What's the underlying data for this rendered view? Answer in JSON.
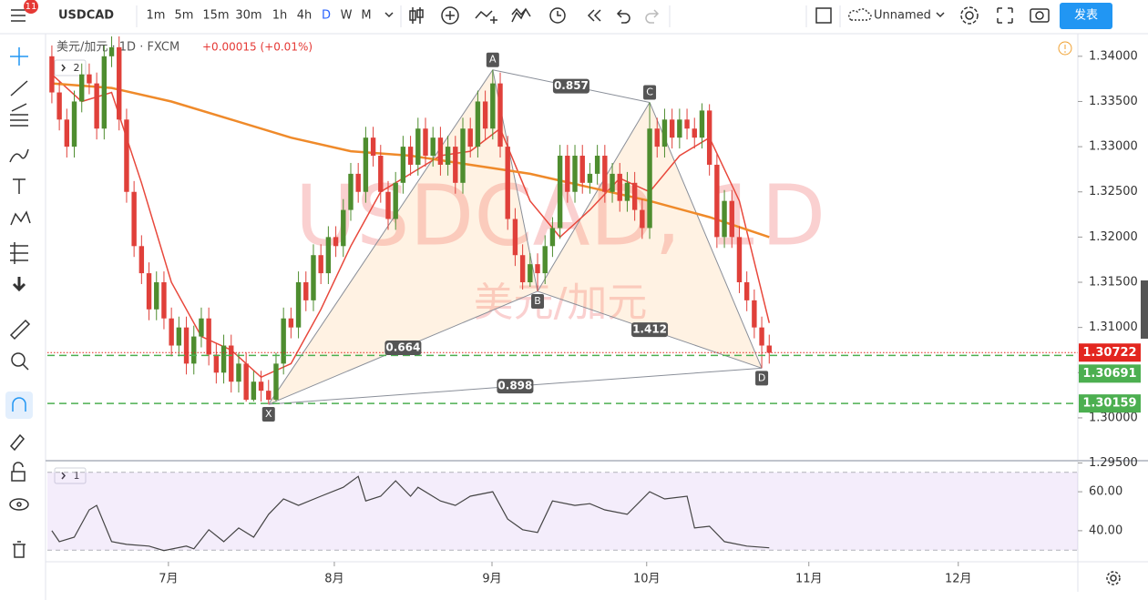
{
  "toolbar": {
    "badge": 11,
    "symbol": "USDCAD",
    "intervals": [
      "1m",
      "5m",
      "15m",
      "30m",
      "1h",
      "4h",
      "D",
      "W",
      "M"
    ],
    "layout_name": "Unnamed",
    "publish": "发表"
  },
  "chart_data": [
    {
      "type": "candlestick",
      "legend_title": "美元/加元 · 1D · FXCM",
      "change": "+0.00015 (+0.01%)",
      "indicator_count": 2,
      "watermark": "USDCAD, 1D",
      "watermark_subtitle": "美元/加元",
      "xlim": [
        -0.6,
        137.3
      ],
      "ylim": [
        1.29536,
        1.3425
      ],
      "yticks": [
        {
          "value": 1.34,
          "label": "1.34000"
        },
        {
          "value": 1.335,
          "label": "1.33500"
        },
        {
          "value": 1.33,
          "label": "1.33000"
        },
        {
          "value": 1.325,
          "label": "1.32500"
        },
        {
          "value": 1.32,
          "label": "1.32000"
        },
        {
          "value": 1.315,
          "label": "1.31500"
        },
        {
          "value": 1.31,
          "label": "1.31000"
        },
        {
          "value": 1.305,
          "label": "1.30500"
        },
        {
          "value": 1.3,
          "label": "1.30000"
        },
        {
          "value": 1.295,
          "label": "1.29500"
        }
      ],
      "up_color": "#4e8d2f",
      "down_color": "#e0403a",
      "x": [
        0,
        1,
        2,
        3,
        4,
        5,
        6,
        7,
        8,
        9,
        10,
        11,
        12,
        13,
        14,
        15,
        16,
        17,
        18,
        19,
        20,
        21,
        22,
        23,
        24,
        25,
        26,
        27,
        28,
        29,
        30,
        31,
        32,
        33,
        34,
        35,
        36,
        37,
        38,
        39,
        40,
        41,
        42,
        43,
        44,
        45,
        46,
        47,
        48,
        49,
        50,
        51,
        52,
        53,
        54,
        55,
        56,
        57,
        58,
        59,
        60,
        61,
        62,
        63,
        64,
        65,
        66,
        67,
        68,
        69,
        70,
        71,
        72,
        73,
        74,
        75,
        76,
        77,
        78,
        79,
        80,
        81,
        82,
        83,
        84,
        85,
        86,
        87,
        88,
        89,
        90,
        91,
        92,
        93,
        94,
        95,
        96
      ],
      "open": [
        1.34,
        1.336,
        1.333,
        1.33,
        1.335,
        1.338,
        1.337,
        1.332,
        1.34,
        1.341,
        1.333,
        1.325,
        1.319,
        1.316,
        1.312,
        1.315,
        1.311,
        1.308,
        1.31,
        1.306,
        1.309,
        1.311,
        1.307,
        1.305,
        1.308,
        1.304,
        1.306,
        1.302,
        1.304,
        1.303,
        1.302,
        1.306,
        1.311,
        1.31,
        1.315,
        1.313,
        1.318,
        1.316,
        1.32,
        1.319,
        1.323,
        1.327,
        1.325,
        1.331,
        1.329,
        1.325,
        1.322,
        1.326,
        1.33,
        1.328,
        1.332,
        1.329,
        1.331,
        1.328,
        1.33,
        1.326,
        1.332,
        1.33,
        1.335,
        1.332,
        1.337,
        1.33,
        1.322,
        1.318,
        1.315,
        1.317,
        1.316,
        1.319,
        1.321,
        1.329,
        1.325,
        1.329,
        1.326,
        1.327,
        1.329,
        1.325,
        1.327,
        1.324,
        1.326,
        1.323,
        1.321,
        1.332,
        1.33,
        1.333,
        1.331,
        1.333,
        1.332,
        1.331,
        1.334,
        1.328,
        1.32,
        1.324,
        1.32,
        1.315,
        1.313,
        1.31,
        1.308
      ],
      "high": [
        1.3412,
        1.3372,
        1.3342,
        1.3362,
        1.3392,
        1.3392,
        1.3382,
        1.3412,
        1.3422,
        1.3422,
        1.3342,
        1.3262,
        1.3202,
        1.3172,
        1.3162,
        1.3162,
        1.3122,
        1.3112,
        1.3112,
        1.3102,
        1.3122,
        1.3122,
        1.3082,
        1.3092,
        1.3092,
        1.3072,
        1.3072,
        1.3052,
        1.3052,
        1.3042,
        1.3072,
        1.3122,
        1.3122,
        1.3162,
        1.3162,
        1.3192,
        1.3192,
        1.3212,
        1.3212,
        1.3242,
        1.3282,
        1.3282,
        1.3322,
        1.3322,
        1.3302,
        1.3262,
        1.3272,
        1.3312,
        1.3312,
        1.3332,
        1.3332,
        1.3322,
        1.3322,
        1.3312,
        1.3312,
        1.3332,
        1.3332,
        1.3362,
        1.3362,
        1.3385,
        1.3382,
        1.3312,
        1.3232,
        1.3192,
        1.3182,
        1.3182,
        1.3202,
        1.3222,
        1.3302,
        1.3302,
        1.3302,
        1.3302,
        1.3282,
        1.3302,
        1.3302,
        1.3282,
        1.3282,
        1.3272,
        1.3272,
        1.3242,
        1.3349,
        1.3332,
        1.3342,
        1.3342,
        1.3342,
        1.3342,
        1.3332,
        1.3348,
        1.3347,
        1.3292,
        1.3252,
        1.3252,
        1.3212,
        1.3162,
        1.3142,
        1.3112,
        1.3092
      ],
      "low": [
        1.3348,
        1.3318,
        1.3288,
        1.3288,
        1.3338,
        1.3358,
        1.3308,
        1.3308,
        1.3388,
        1.3318,
        1.3238,
        1.3178,
        1.3148,
        1.3108,
        1.3108,
        1.3098,
        1.3068,
        1.3068,
        1.3048,
        1.3048,
        1.3078,
        1.3058,
        1.3038,
        1.3038,
        1.3028,
        1.3028,
        1.3018,
        1.3018,
        1.3018,
        1.3015,
        1.3018,
        1.3048,
        1.3088,
        1.3088,
        1.3118,
        1.3118,
        1.3148,
        1.3148,
        1.3178,
        1.3178,
        1.3218,
        1.3238,
        1.3238,
        1.3278,
        1.3238,
        1.3208,
        1.3208,
        1.3248,
        1.3268,
        1.3268,
        1.3278,
        1.3278,
        1.3268,
        1.3268,
        1.3248,
        1.3248,
        1.3288,
        1.3288,
        1.3308,
        1.3308,
        1.3288,
        1.3208,
        1.3168,
        1.3142,
        1.3145,
        1.314,
        1.3148,
        1.3178,
        1.3198,
        1.3238,
        1.3238,
        1.3248,
        1.3248,
        1.3258,
        1.3238,
        1.3238,
        1.3228,
        1.3228,
        1.3218,
        1.3198,
        1.3198,
        1.3288,
        1.3288,
        1.3298,
        1.3298,
        1.3308,
        1.3298,
        1.3298,
        1.3268,
        1.3188,
        1.3188,
        1.3188,
        1.3138,
        1.3118,
        1.3088,
        1.3055,
        1.306
      ],
      "close": [
        1.336,
        1.333,
        1.33,
        1.335,
        1.338,
        1.337,
        1.332,
        1.34,
        1.341,
        1.333,
        1.325,
        1.319,
        1.316,
        1.312,
        1.315,
        1.311,
        1.308,
        1.31,
        1.306,
        1.309,
        1.311,
        1.307,
        1.305,
        1.308,
        1.304,
        1.306,
        1.302,
        1.304,
        1.303,
        1.302,
        1.306,
        1.311,
        1.31,
        1.315,
        1.313,
        1.318,
        1.316,
        1.32,
        1.319,
        1.323,
        1.327,
        1.325,
        1.331,
        1.329,
        1.325,
        1.322,
        1.326,
        1.33,
        1.328,
        1.332,
        1.329,
        1.331,
        1.328,
        1.33,
        1.326,
        1.332,
        1.33,
        1.335,
        1.332,
        1.337,
        1.33,
        1.322,
        1.318,
        1.315,
        1.317,
        1.316,
        1.319,
        1.321,
        1.329,
        1.325,
        1.329,
        1.326,
        1.327,
        1.329,
        1.325,
        1.327,
        1.324,
        1.326,
        1.323,
        1.321,
        1.332,
        1.33,
        1.333,
        1.331,
        1.333,
        1.332,
        1.331,
        1.334,
        1.328,
        1.32,
        1.324,
        1.32,
        1.315,
        1.313,
        1.31,
        1.308,
        1.3072
      ],
      "moving_averages": [
        {
          "color": "#e8483c",
          "x": [
            0,
            4,
            8,
            12,
            16,
            20,
            24,
            28,
            32,
            36,
            40,
            44,
            48,
            52,
            56,
            60,
            64,
            68,
            72,
            76,
            80,
            84,
            88,
            92,
            96
          ],
          "values": [
            1.338,
            1.335,
            1.336,
            1.326,
            1.315,
            1.309,
            1.3075,
            1.3045,
            1.306,
            1.312,
            1.319,
            1.325,
            1.327,
            1.329,
            1.3295,
            1.332,
            1.324,
            1.32,
            1.323,
            1.3265,
            1.325,
            1.329,
            1.331,
            1.324,
            1.3105
          ]
        },
        {
          "color": "#ef8a2a",
          "x": [
            0,
            8,
            16,
            24,
            32,
            40,
            48,
            56,
            64,
            72,
            80,
            88,
            96
          ],
          "values": [
            1.337,
            1.3365,
            1.335,
            1.333,
            1.331,
            1.3295,
            1.329,
            1.328,
            1.327,
            1.3255,
            1.324,
            1.3222,
            1.32
          ]
        }
      ],
      "pattern": {
        "points": [
          {
            "label": "X",
            "x": 29,
            "y": 1.3015
          },
          {
            "label": "A",
            "x": 59,
            "y": 1.3385
          },
          {
            "label": "B",
            "x": 65,
            "y": 1.314
          },
          {
            "label": "C",
            "x": 80,
            "y": 1.3349
          },
          {
            "label": "D",
            "x": 95,
            "y": 1.3055
          }
        ],
        "ratios": [
          0.857,
          0.664,
          1.412,
          0.898
        ]
      },
      "levels": [
        {
          "value": 1.30722,
          "color": "#e3261f",
          "dash": "dotted"
        },
        {
          "value": 1.30691,
          "color": "#4caf50",
          "dash": "dashed"
        },
        {
          "value": 1.30159,
          "color": "#4caf50",
          "dash": "dashed"
        }
      ]
    },
    {
      "type": "line",
      "indicator_count": 1,
      "xlim": [
        -0.6,
        137.3
      ],
      "ylim": [
        25,
        75
      ],
      "yticks": [
        {
          "value": 40,
          "label": "40.00"
        },
        {
          "value": 60,
          "label": "60.00"
        }
      ],
      "band": [
        30,
        70
      ],
      "xticks": [
        {
          "value": 15.6,
          "label": "7月"
        },
        {
          "value": 37.8,
          "label": "8月"
        },
        {
          "value": 58.9,
          "label": "9月"
        },
        {
          "value": 79.6,
          "label": "10月"
        },
        {
          "value": 101.3,
          "label": "11月"
        },
        {
          "value": 121.3,
          "label": "12月"
        }
      ],
      "series": [
        {
          "color": "#444444",
          "x": [
            0,
            1,
            3,
            5,
            6,
            8,
            10,
            13,
            15,
            18,
            19,
            21,
            23,
            25,
            27,
            29,
            31,
            33,
            36,
            39,
            41,
            42,
            44,
            46,
            48,
            49,
            52,
            54,
            56,
            59,
            61,
            63,
            65,
            67,
            70,
            72,
            74,
            77,
            80,
            82,
            85,
            86,
            88,
            90,
            93,
            96
          ],
          "values": [
            40,
            34.4,
            36.7,
            50.7,
            53,
            34.4,
            33,
            32.1,
            29.8,
            32.1,
            30.7,
            40.5,
            34.4,
            41.4,
            36.7,
            48.4,
            56.3,
            53,
            57.7,
            62.3,
            67.9,
            55.3,
            57.7,
            65.6,
            57.7,
            62.3,
            55.3,
            53,
            57.7,
            60,
            46,
            40.5,
            39.1,
            55.3,
            53,
            53.9,
            50.7,
            48.4,
            60,
            56.3,
            57.7,
            41.4,
            42.3,
            34.4,
            32.1,
            31.2
          ]
        }
      ]
    }
  ]
}
